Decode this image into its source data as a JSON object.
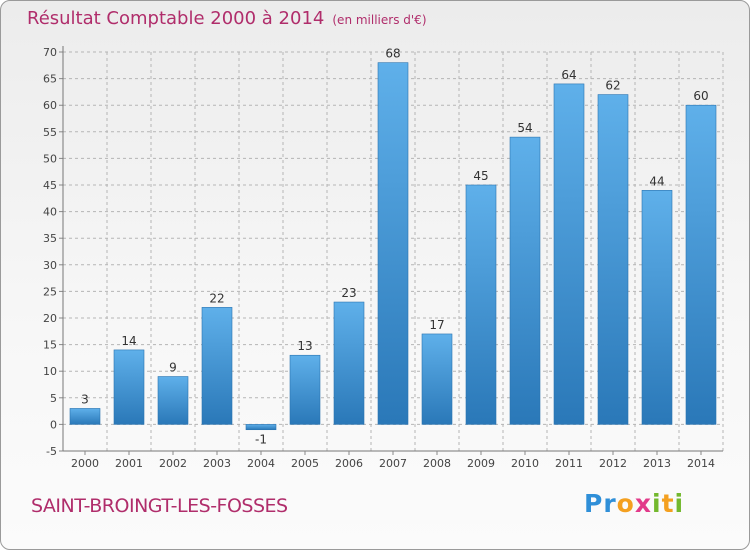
{
  "header": {
    "title": "Résultat Comptable 2000 à 2014",
    "subtitle": "(en milliers d'€)"
  },
  "footer": {
    "town": "SAINT-BROINGT-LES-FOSSES",
    "logo": "Proxiti"
  },
  "colors": {
    "title": "#b02d6b",
    "bar": "#4f9fdb",
    "grid": "#b5b5b5"
  },
  "chart_data": {
    "type": "bar",
    "categories": [
      "2000",
      "2001",
      "2002",
      "2003",
      "2004",
      "2005",
      "2006",
      "2007",
      "2008",
      "2009",
      "2010",
      "2011",
      "2012",
      "2013",
      "2014"
    ],
    "values": [
      3,
      14,
      9,
      22,
      -1,
      13,
      23,
      68,
      17,
      45,
      54,
      64,
      62,
      44,
      60
    ],
    "ylim": [
      -5,
      70
    ],
    "yticks": [
      -5,
      0,
      5,
      10,
      15,
      20,
      25,
      30,
      35,
      40,
      45,
      50,
      55,
      60,
      65,
      70
    ],
    "grid": true,
    "data_labels": true
  }
}
